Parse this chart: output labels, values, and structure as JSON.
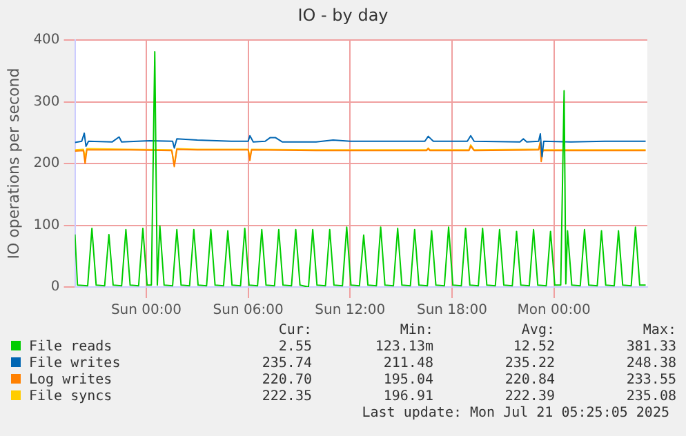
{
  "chart_data": {
    "type": "line",
    "title": "IO - by day",
    "ylabel": "IO operations per second",
    "xlim": [
      "2025-07-19T19:48",
      "2025-07-21T05:30"
    ],
    "xticks": [
      {
        "value": "2025-07-20T00:00",
        "label": "Sun 00:00"
      },
      {
        "value": "2025-07-20T06:00",
        "label": "Sun 06:00"
      },
      {
        "value": "2025-07-20T12:00",
        "label": "Sun 12:00"
      },
      {
        "value": "2025-07-20T18:00",
        "label": "Sun 18:00"
      },
      {
        "value": "2025-07-21T00:00",
        "label": "Mon 00:00"
      }
    ],
    "ylim": [
      0,
      400
    ],
    "yticks": [
      0,
      100,
      200,
      300,
      400
    ],
    "grid": true,
    "legend": "bottom",
    "marker": "none",
    "line_style": "solid",
    "series": [
      {
        "name": "File reads",
        "color": "#00cc00",
        "x": [
          "2025-07-19T19:48",
          "2025-07-19T19:57",
          "2025-07-19T20:33",
          "2025-07-19T20:48",
          "2025-07-19T21:03",
          "2025-07-19T21:33",
          "2025-07-19T21:48",
          "2025-07-19T22:03",
          "2025-07-19T22:33",
          "2025-07-19T22:48",
          "2025-07-19T23:03",
          "2025-07-19T23:33",
          "2025-07-19T23:48",
          "2025-07-20T00:03",
          "2025-07-20T00:18",
          "2025-07-20T00:30",
          "2025-07-20T00:39",
          "2025-07-20T00:48",
          "2025-07-20T01:03",
          "2025-07-20T01:33",
          "2025-07-20T01:48",
          "2025-07-20T02:03",
          "2025-07-20T02:33",
          "2025-07-20T02:48",
          "2025-07-20T03:03",
          "2025-07-20T03:33",
          "2025-07-20T03:48",
          "2025-07-20T04:03",
          "2025-07-20T04:33",
          "2025-07-20T04:48",
          "2025-07-20T05:03",
          "2025-07-20T05:33",
          "2025-07-20T05:48",
          "2025-07-20T06:03",
          "2025-07-20T06:33",
          "2025-07-20T06:48",
          "2025-07-20T07:03",
          "2025-07-20T07:33",
          "2025-07-20T07:48",
          "2025-07-20T08:03",
          "2025-07-20T08:33",
          "2025-07-20T08:48",
          "2025-07-20T09:03",
          "2025-07-20T09:33",
          "2025-07-20T09:48",
          "2025-07-20T10:03",
          "2025-07-20T10:33",
          "2025-07-20T10:48",
          "2025-07-20T11:03",
          "2025-07-20T11:33",
          "2025-07-20T11:48",
          "2025-07-20T12:03",
          "2025-07-20T12:33",
          "2025-07-20T12:48",
          "2025-07-20T13:03",
          "2025-07-20T13:33",
          "2025-07-20T13:48",
          "2025-07-20T14:03",
          "2025-07-20T14:33",
          "2025-07-20T14:48",
          "2025-07-20T15:03",
          "2025-07-20T15:33",
          "2025-07-20T15:48",
          "2025-07-20T16:03",
          "2025-07-20T16:33",
          "2025-07-20T16:48",
          "2025-07-20T17:03",
          "2025-07-20T17:33",
          "2025-07-20T17:48",
          "2025-07-20T18:03",
          "2025-07-20T18:33",
          "2025-07-20T18:48",
          "2025-07-20T19:03",
          "2025-07-20T19:33",
          "2025-07-20T19:48",
          "2025-07-20T20:03",
          "2025-07-20T20:33",
          "2025-07-20T20:48",
          "2025-07-20T21:03",
          "2025-07-20T21:33",
          "2025-07-20T21:48",
          "2025-07-20T22:03",
          "2025-07-20T22:33",
          "2025-07-20T22:48",
          "2025-07-20T23:03",
          "2025-07-20T23:33",
          "2025-07-20T23:48",
          "2025-07-21T00:03",
          "2025-07-21T00:24",
          "2025-07-21T00:36",
          "2025-07-21T00:42",
          "2025-07-21T00:48",
          "2025-07-21T01:03",
          "2025-07-21T01:33",
          "2025-07-21T01:48",
          "2025-07-21T02:03",
          "2025-07-21T02:33",
          "2025-07-21T02:48",
          "2025-07-21T03:03",
          "2025-07-21T03:33",
          "2025-07-21T03:48",
          "2025-07-21T04:03",
          "2025-07-21T04:33",
          "2025-07-21T04:48",
          "2025-07-21T05:03",
          "2025-07-21T05:24"
        ],
        "values": [
          85,
          3,
          2,
          95,
          3,
          2,
          85,
          3,
          2,
          93,
          3,
          2,
          95,
          3,
          3,
          381,
          3,
          99,
          3,
          2,
          93,
          3,
          2,
          93,
          3,
          2,
          93,
          3,
          2,
          91,
          3,
          2,
          95,
          3,
          2,
          93,
          3,
          2,
          93,
          3,
          2,
          93,
          3,
          0,
          93,
          3,
          2,
          93,
          3,
          2,
          97,
          3,
          2,
          84,
          3,
          2,
          97,
          3,
          2,
          95,
          3,
          2,
          93,
          3,
          2,
          91,
          3,
          2,
          97,
          3,
          2,
          95,
          3,
          2,
          95,
          3,
          2,
          93,
          3,
          2,
          90,
          3,
          2,
          93,
          3,
          2,
          90,
          3,
          3,
          318,
          5,
          91,
          3,
          2,
          93,
          3,
          2,
          91,
          3,
          2,
          91,
          3,
          2,
          97,
          3,
          3
        ]
      },
      {
        "name": "File writes",
        "color": "#0066b3",
        "x": [
          "2025-07-19T19:48",
          "2025-07-19T20:12",
          "2025-07-19T20:21",
          "2025-07-19T20:27",
          "2025-07-19T20:36",
          "2025-07-19T22:00",
          "2025-07-19T22:24",
          "2025-07-19T22:33",
          "2025-07-20T00:12",
          "2025-07-20T01:33",
          "2025-07-20T01:39",
          "2025-07-20T01:48",
          "2025-07-20T03:00",
          "2025-07-20T05:00",
          "2025-07-20T06:00",
          "2025-07-20T06:06",
          "2025-07-20T06:18",
          "2025-07-20T07:00",
          "2025-07-20T07:18",
          "2025-07-20T07:36",
          "2025-07-20T08:00",
          "2025-07-20T10:00",
          "2025-07-20T11:00",
          "2025-07-20T12:00",
          "2025-07-20T14:00",
          "2025-07-20T16:24",
          "2025-07-20T16:36",
          "2025-07-20T16:54",
          "2025-07-20T18:54",
          "2025-07-20T19:06",
          "2025-07-20T19:18",
          "2025-07-20T22:00",
          "2025-07-20T22:12",
          "2025-07-20T22:24",
          "2025-07-20T23:06",
          "2025-07-20T23:12",
          "2025-07-20T23:18",
          "2025-07-20T23:24",
          "2025-07-21T01:00",
          "2025-07-21T03:00",
          "2025-07-21T05:24"
        ],
        "values": [
          234,
          236,
          249,
          228,
          236,
          235,
          243,
          235,
          237,
          236,
          225,
          240,
          238,
          236,
          236,
          245,
          235,
          236,
          242,
          242,
          235,
          235,
          238,
          236,
          236,
          236,
          244,
          236,
          236,
          245,
          236,
          235,
          240,
          235,
          236,
          248,
          211,
          236,
          235,
          236,
          236
        ]
      },
      {
        "name": "Log writes",
        "color": "#ff8000",
        "x": [
          "2025-07-19T19:48",
          "2025-07-19T20:18",
          "2025-07-19T20:24",
          "2025-07-19T20:30",
          "2025-07-19T23:00",
          "2025-07-20T01:30",
          "2025-07-20T01:39",
          "2025-07-20T01:48",
          "2025-07-20T03:00",
          "2025-07-20T06:00",
          "2025-07-20T06:06",
          "2025-07-20T06:12",
          "2025-07-20T10:00",
          "2025-07-20T16:30",
          "2025-07-20T16:36",
          "2025-07-20T16:42",
          "2025-07-20T19:00",
          "2025-07-20T19:06",
          "2025-07-20T19:18",
          "2025-07-20T23:06",
          "2025-07-20T23:12",
          "2025-07-20T23:15",
          "2025-07-20T23:21",
          "2025-07-21T05:24"
        ],
        "values": [
          220,
          221,
          200,
          222,
          222,
          221,
          195,
          223,
          222,
          222,
          205,
          222,
          221,
          221,
          224,
          221,
          221,
          228,
          221,
          222,
          234,
          203,
          221,
          221
        ]
      },
      {
        "name": "File syncs",
        "color": "#ffcc00",
        "x": [
          "2025-07-19T19:48",
          "2025-07-19T20:18",
          "2025-07-19T20:24",
          "2025-07-19T20:30",
          "2025-07-19T23:00",
          "2025-07-20T01:30",
          "2025-07-20T01:39",
          "2025-07-20T01:48",
          "2025-07-20T03:00",
          "2025-07-20T06:00",
          "2025-07-20T06:06",
          "2025-07-20T06:12",
          "2025-07-20T10:00",
          "2025-07-20T16:30",
          "2025-07-20T16:36",
          "2025-07-20T16:42",
          "2025-07-20T19:00",
          "2025-07-20T19:06",
          "2025-07-20T19:18",
          "2025-07-20T23:06",
          "2025-07-20T23:12",
          "2025-07-20T23:15",
          "2025-07-20T23:21",
          "2025-07-21T05:24"
        ],
        "values": [
          222,
          223,
          210,
          224,
          223,
          222,
          197,
          224,
          223,
          223,
          210,
          223,
          222,
          222,
          225,
          222,
          222,
          230,
          222,
          223,
          235,
          208,
          222,
          222
        ]
      }
    ],
    "annotations": [
      "Cur:",
      "Min:",
      "Avg:",
      "Max:",
      "2.55",
      "123.13m",
      "12.52",
      "381.33",
      "235.74",
      "211.48",
      "235.22",
      "248.38",
      "220.70",
      "195.04",
      "220.84",
      "233.55",
      "222.35",
      "196.91",
      "222.39",
      "235.08",
      "Last update:  Mon Jul 21 05:25:05 2025"
    ]
  }
}
